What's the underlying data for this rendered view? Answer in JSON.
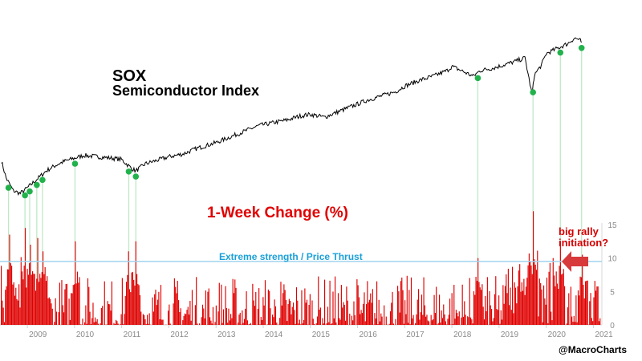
{
  "chart_data": [
    {
      "type": "line",
      "title": "SOX",
      "subtitle": "Semiconductor Index",
      "series": [
        {
          "x": [
            2008.45,
            2008.55,
            2008.7,
            2008.85,
            2009.0,
            2009.2,
            2009.4,
            2009.6,
            2009.8,
            2010.0,
            2010.2,
            2010.5,
            2010.8,
            2011.0,
            2011.2,
            2011.3,
            2011.5,
            2011.8,
            2012.0,
            2012.3,
            2012.6,
            2012.9,
            2013.0,
            2013.3,
            2013.6,
            2013.9,
            2014.2,
            2014.5,
            2014.8,
            2015.0,
            2015.3,
            2015.6,
            2015.9,
            2016.2,
            2016.5,
            2016.8,
            2017.0,
            2017.3,
            2017.6,
            2017.9,
            2018.0,
            2018.2,
            2018.45,
            2018.6,
            2018.9,
            2019.0,
            2019.3,
            2019.55,
            2019.7,
            2019.75,
            2019.9,
            2020.0,
            2020.25,
            2020.45,
            2020.6,
            2020.7,
            2020.75
          ],
          "values": [
            33,
            21,
            12,
            10,
            14,
            20,
            26,
            30,
            33,
            35,
            37,
            36,
            35,
            34,
            28,
            26,
            31,
            34,
            36,
            38,
            42,
            45,
            46,
            50,
            54,
            58,
            60,
            62,
            65,
            66,
            64,
            68,
            72,
            76,
            79,
            82,
            86,
            90,
            93,
            97,
            100,
            97,
            93,
            97,
            99,
            100,
            103,
            106,
            80,
            94,
            101,
            109,
            113,
            116,
            120,
            119,
            117
          ]
        }
      ],
      "markers_x": [
        2008.6,
        2008.95,
        2009.05,
        2009.2,
        2009.32,
        2010.01,
        2011.15,
        2011.3,
        2018.55,
        2019.72,
        2020.3,
        2020.75
      ],
      "y_axis": "none"
    },
    {
      "type": "bar",
      "title": "1-Week Change (%)",
      "xlabel": "",
      "ylabel": "",
      "ylim": [
        0,
        15
      ],
      "yticks": [
        "0",
        "5",
        "10",
        "15"
      ],
      "xticks": [
        "2009",
        "2010",
        "2011",
        "2012",
        "2013",
        "2014",
        "2015",
        "2016",
        "2017",
        "2018",
        "2019",
        "2020",
        "2021"
      ],
      "threshold": {
        "value": 9.5,
        "label": "Extreme strength / Price Thrust",
        "color": "#9fd3ef"
      },
      "bar_color": "#e00000",
      "spikes": [
        {
          "x": 2008.6,
          "value": 13.5
        },
        {
          "x": 2008.95,
          "value": 14.5
        },
        {
          "x": 2009.05,
          "value": 12
        },
        {
          "x": 2009.2,
          "value": 13
        },
        {
          "x": 2009.32,
          "value": 11
        },
        {
          "x": 2010.01,
          "value": 12.5
        },
        {
          "x": 2011.15,
          "value": 11
        },
        {
          "x": 2011.3,
          "value": 12.5
        },
        {
          "x": 2018.55,
          "value": 10
        },
        {
          "x": 2019.72,
          "value": 17
        },
        {
          "x": 2020.3,
          "value": 12.5
        },
        {
          "x": 2020.75,
          "value": 10.5
        }
      ],
      "annotation": {
        "text_line1": "big rally",
        "text_line2": "initiation?"
      }
    }
  ],
  "watermark": "@MacroCharts"
}
